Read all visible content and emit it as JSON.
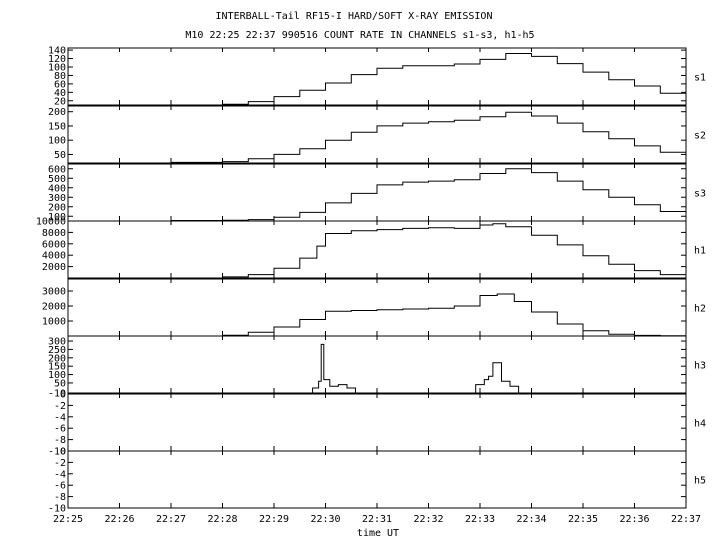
{
  "title": "INTERBALL-Tail RF15-I HARD/SOFT X-RAY EMISSION",
  "subtitle": "M10  22:25 22:37 990516  COUNT RATE IN CHANNELS s1-s3, h1-h5",
  "xlabel": "time UT",
  "colors": {
    "line": "#000000",
    "background": "#ffffff"
  },
  "chart_data": {
    "type": "line",
    "title": "INTERBALL-Tail RF15-I HARD/SOFT X-RAY EMISSION",
    "subtitle": "M10  22:25 22:37 990516  COUNT RATE IN CHANNELS s1-s3, h1-h5",
    "xlabel": "time UT",
    "x_range": [
      "22:25",
      "22:37"
    ],
    "x_ticks": [
      "22:25",
      "22:26",
      "22:27",
      "22:28",
      "22:29",
      "22:30",
      "22:31",
      "22:32",
      "22:33",
      "22:34",
      "22:35",
      "22:36",
      "22:37"
    ],
    "grid": false,
    "panels": [
      {
        "name": "s1",
        "ylim": [
          10,
          145
        ],
        "yticks": [
          20,
          40,
          60,
          80,
          100,
          120,
          140
        ],
        "series": [
          {
            "name": "s1",
            "x": [
              "22:27",
              "22:28",
              "22:28:30",
              "22:29",
              "22:29:30",
              "22:30",
              "22:30:30",
              "22:31",
              "22:31:30",
              "22:32",
              "22:32:30",
              "22:33",
              "22:33:30",
              "22:34",
              "22:34:30",
              "22:35",
              "22:35:30",
              "22:36",
              "22:36:30",
              "22:37"
            ],
            "values": [
              10,
              12,
              18,
              30,
              45,
              62,
              82,
              97,
              103,
              103,
              107,
              118,
              132,
              125,
              108,
              88,
              70,
              55,
              38,
              28
            ]
          }
        ]
      },
      {
        "name": "s2",
        "ylim": [
          20,
          220
        ],
        "yticks": [
          50,
          100,
          150,
          200
        ],
        "series": [
          {
            "name": "s2",
            "x": [
              "22:27",
              "22:28",
              "22:28:30",
              "22:29",
              "22:29:30",
              "22:30",
              "22:30:30",
              "22:31",
              "22:31:30",
              "22:32",
              "22:32:30",
              "22:33",
              "22:33:30",
              "22:34",
              "22:34:30",
              "22:35",
              "22:35:30",
              "22:36",
              "22:36:30",
              "22:37"
            ],
            "values": [
              22,
              25,
              35,
              50,
              70,
              100,
              128,
              150,
              160,
              165,
              170,
              182,
              198,
              185,
              160,
              130,
              105,
              80,
              58,
              42
            ]
          }
        ]
      },
      {
        "name": "s3",
        "ylim": [
          50,
          650
        ],
        "yticks": [
          100,
          200,
          300,
          400,
          500,
          600
        ],
        "series": [
          {
            "name": "s3",
            "x": [
              "22:27",
              "22:28",
              "22:28:30",
              "22:29",
              "22:29:30",
              "22:30",
              "22:30:30",
              "22:31",
              "22:31:30",
              "22:32",
              "22:32:30",
              "22:33",
              "22:33:30",
              "22:34",
              "22:34:30",
              "22:35",
              "22:35:30",
              "22:36",
              "22:36:30",
              "22:37"
            ],
            "values": [
              55,
              58,
              65,
              90,
              140,
              240,
              340,
              430,
              460,
              470,
              485,
              550,
              600,
              560,
              470,
              380,
              300,
              220,
              150,
              110
            ]
          }
        ]
      },
      {
        "name": "h1",
        "ylim": [
          0,
          10000
        ],
        "yticks": [
          2000,
          4000,
          6000,
          8000,
          10000
        ],
        "series": [
          {
            "name": "h1",
            "x": [
              "22:27",
              "22:28",
              "22:28:30",
              "22:29",
              "22:29:30",
              "22:29:50",
              "22:30",
              "22:30:30",
              "22:31",
              "22:31:30",
              "22:32",
              "22:32:30",
              "22:33",
              "22:33:15",
              "22:33:30",
              "22:34",
              "22:34:30",
              "22:35",
              "22:35:30",
              "22:36",
              "22:36:30",
              "22:37"
            ],
            "values": [
              0,
              200,
              600,
              1700,
              3500,
              5600,
              7800,
              8300,
              8500,
              8700,
              8800,
              8700,
              9300,
              9500,
              9000,
              7500,
              5800,
              3900,
              2400,
              1300,
              600,
              300
            ]
          }
        ]
      },
      {
        "name": "h2",
        "ylim": [
          0,
          3800
        ],
        "yticks": [
          1000,
          2000,
          3000
        ],
        "series": [
          {
            "name": "h2",
            "x": [
              "22:27",
              "22:28",
              "22:28:30",
              "22:29",
              "22:29:30",
              "22:30",
              "22:30:30",
              "22:31",
              "22:31:30",
              "22:32",
              "22:32:30",
              "22:33",
              "22:33:20",
              "22:33:40",
              "22:34",
              "22:34:30",
              "22:35",
              "22:35:30",
              "22:36",
              "22:36:30",
              "22:37"
            ],
            "values": [
              0,
              50,
              250,
              600,
              1100,
              1650,
              1700,
              1750,
              1800,
              1850,
              2000,
              2700,
              2800,
              2300,
              1600,
              800,
              350,
              120,
              40,
              20,
              10
            ]
          }
        ]
      },
      {
        "name": "h3",
        "ylim": [
          -10,
          330
        ],
        "yticks": [
          -10,
          50,
          100,
          150,
          200,
          250,
          300
        ],
        "series": [
          {
            "name": "h3",
            "x": [
              "22:29:35",
              "22:29:45",
              "22:29:52",
              "22:29:55",
              "22:29:58",
              "22:30:05",
              "22:30:15",
              "22:30:25",
              "22:30:35",
              "22:32:45",
              "22:32:55",
              "22:33:05",
              "22:33:10",
              "22:33:15",
              "22:33:25",
              "22:33:35",
              "22:33:45"
            ],
            "values": [
              -10,
              20,
              60,
              280,
              70,
              30,
              40,
              20,
              -10,
              -10,
              40,
              70,
              90,
              170,
              60,
              30,
              -10
            ]
          }
        ]
      },
      {
        "name": "h4",
        "ylim": [
          -10,
          0
        ],
        "yticks": [
          -10,
          -8,
          -6,
          -4,
          -2,
          0
        ],
        "series": []
      },
      {
        "name": "h5",
        "ylim": [
          -10,
          0
        ],
        "yticks": [
          -10,
          -8,
          -6,
          -4,
          -2,
          0
        ],
        "series": []
      }
    ]
  }
}
